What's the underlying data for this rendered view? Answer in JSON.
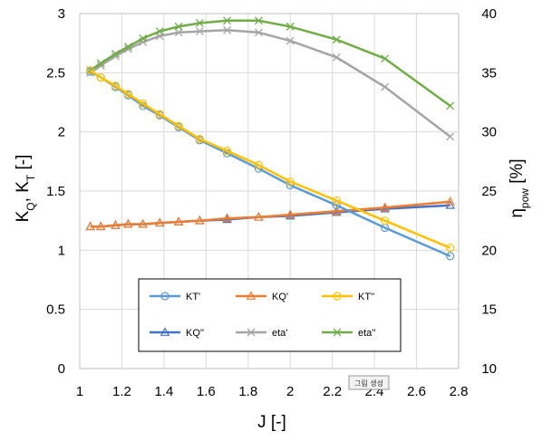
{
  "chart_data": {
    "type": "line",
    "x_axis": {
      "label": "J [-]",
      "range": [
        1,
        2.8
      ],
      "ticks": [
        "1",
        "1.2",
        "1.4",
        "1.6",
        "1.8",
        "2",
        "2.2",
        "2.4",
        "2.6",
        "2.8"
      ]
    },
    "y_axis_left": {
      "label_main": "K",
      "label_sub1": "Q",
      "label_sep": ", K",
      "label_sub2": "T",
      "label_unit": " [-]",
      "range": [
        0,
        3
      ],
      "ticks": [
        "0",
        "0.5",
        "1",
        "1.5",
        "2",
        "2.5",
        "3"
      ]
    },
    "y_axis_right": {
      "label_main": "η",
      "label_sub": "pow",
      "label_unit": " [%]",
      "range": [
        10,
        40
      ],
      "ticks": [
        "10",
        "15",
        "20",
        "25",
        "30",
        "35",
        "40"
      ]
    },
    "grid": "vertical and horizontal",
    "legend_position": "inside-bottom",
    "stamp_text": "그림 생성",
    "series": [
      {
        "name": "KT'",
        "axis": "left",
        "color": "#5B9BD5",
        "marker": "circle",
        "x": [
          1.05,
          1.1,
          1.17,
          1.23,
          1.3,
          1.38,
          1.47,
          1.57,
          1.7,
          1.85,
          2.0,
          2.22,
          2.45,
          2.76
        ],
        "y": [
          2.51,
          2.46,
          2.38,
          2.31,
          2.22,
          2.14,
          2.04,
          1.93,
          1.82,
          1.69,
          1.55,
          1.38,
          1.19,
          0.95
        ]
      },
      {
        "name": "KQ'",
        "axis": "left",
        "color": "#ED7D31",
        "marker": "triangle",
        "x": [
          1.05,
          1.1,
          1.17,
          1.23,
          1.3,
          1.38,
          1.47,
          1.57,
          1.7,
          1.85,
          2.0,
          2.22,
          2.45,
          2.76
        ],
        "y": [
          1.2,
          1.2,
          1.21,
          1.22,
          1.22,
          1.23,
          1.24,
          1.25,
          1.27,
          1.28,
          1.3,
          1.33,
          1.36,
          1.41
        ]
      },
      {
        "name": "KT''",
        "axis": "left",
        "color": "#FFC000",
        "marker": "circle",
        "x": [
          1.05,
          1.1,
          1.17,
          1.23,
          1.3,
          1.38,
          1.47,
          1.57,
          1.7,
          1.85,
          2.0,
          2.22,
          2.45,
          2.76
        ],
        "y": [
          2.52,
          2.46,
          2.39,
          2.32,
          2.24,
          2.15,
          2.05,
          1.94,
          1.84,
          1.72,
          1.58,
          1.42,
          1.25,
          1.02
        ]
      },
      {
        "name": "KQ''",
        "axis": "left",
        "color": "#4472C4",
        "marker": "triangle",
        "x": [
          1.05,
          1.1,
          1.17,
          1.23,
          1.3,
          1.38,
          1.47,
          1.57,
          1.7,
          1.85,
          2.0,
          2.22,
          2.45,
          2.76
        ],
        "y": [
          1.2,
          1.2,
          1.21,
          1.22,
          1.22,
          1.23,
          1.24,
          1.25,
          1.26,
          1.28,
          1.29,
          1.32,
          1.35,
          1.38
        ]
      },
      {
        "name": "eta'",
        "axis": "right",
        "color": "#A5A5A5",
        "marker": "x",
        "x": [
          1.05,
          1.1,
          1.17,
          1.23,
          1.3,
          1.38,
          1.47,
          1.57,
          1.7,
          1.85,
          2.0,
          2.22,
          2.45,
          2.76
        ],
        "y": [
          35.0,
          35.6,
          36.4,
          37.0,
          37.6,
          38.1,
          38.4,
          38.5,
          38.6,
          38.4,
          37.7,
          36.3,
          33.8,
          29.6
        ]
      },
      {
        "name": "eta''",
        "axis": "right",
        "color": "#70AD47",
        "marker": "x",
        "x": [
          1.05,
          1.1,
          1.17,
          1.23,
          1.3,
          1.38,
          1.47,
          1.57,
          1.7,
          1.85,
          2.0,
          2.22,
          2.45,
          2.76
        ],
        "y": [
          35.2,
          35.8,
          36.6,
          37.2,
          37.9,
          38.5,
          38.9,
          39.2,
          39.4,
          39.4,
          38.9,
          37.8,
          36.2,
          32.2
        ]
      }
    ]
  }
}
